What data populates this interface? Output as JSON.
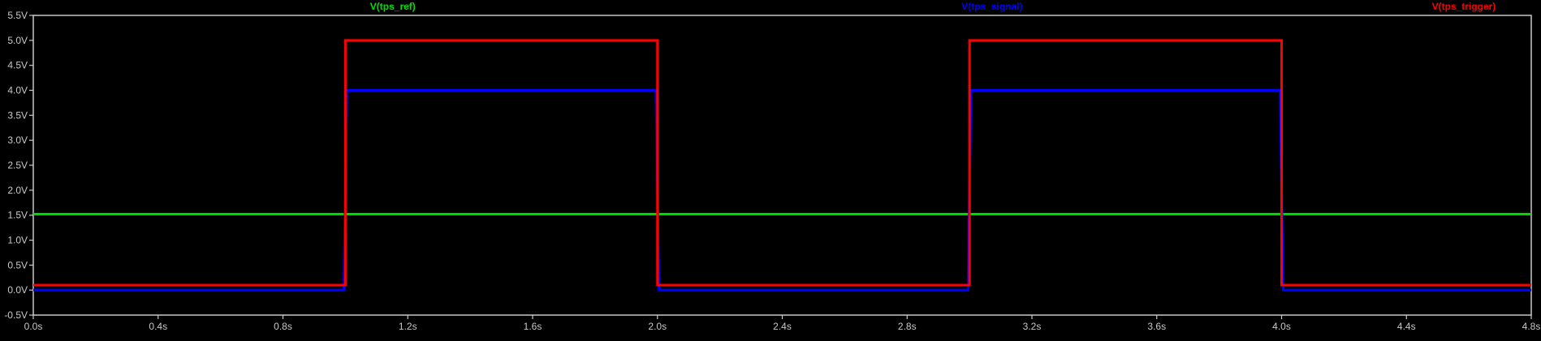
{
  "chart_data": {
    "type": "line",
    "title": "",
    "xlabel": "",
    "ylabel": "",
    "xlim": [
      0,
      4.8
    ],
    "ylim": [
      -0.5,
      5.5
    ],
    "grid": false,
    "background": "#000000",
    "axis_color": "#c8c8c8",
    "x_ticks": [
      0,
      0.4,
      0.8,
      1.2,
      1.6,
      2.0,
      2.4,
      2.8,
      3.2,
      3.6,
      4.0,
      4.4,
      4.8
    ],
    "x_tick_labels": [
      "0.0s",
      "0.4s",
      "0.8s",
      "1.2s",
      "1.6s",
      "2.0s",
      "2.4s",
      "2.8s",
      "3.2s",
      "3.6s",
      "4.0s",
      "4.4s",
      "4.8s"
    ],
    "y_ticks": [
      -0.5,
      0.0,
      0.5,
      1.0,
      1.5,
      2.0,
      2.5,
      3.0,
      3.5,
      4.0,
      4.5,
      5.0,
      5.5
    ],
    "y_tick_labels": [
      "-0.5V",
      "0.0V",
      "0.5V",
      "1.0V",
      "1.5V",
      "2.0V",
      "2.5V",
      "3.0V",
      "3.5V",
      "4.0V",
      "4.5V",
      "5.0V",
      "5.5V"
    ],
    "legend_placement": "top",
    "series": [
      {
        "name": "V(tps_ref)",
        "color": "#00e000",
        "x": [
          0,
          4.8
        ],
        "y": [
          1.52,
          1.52
        ]
      },
      {
        "name": "V(tps_signal)",
        "color": "#0000ff",
        "x": [
          0,
          0.995,
          1.005,
          1.995,
          2.005,
          2.995,
          3.005,
          3.995,
          4.005,
          4.8
        ],
        "y": [
          0.0,
          0.0,
          4.0,
          4.0,
          0.0,
          0.0,
          4.0,
          4.0,
          0.0,
          0.0
        ]
      },
      {
        "name": "V(tps_trigger)",
        "color": "#ff0000",
        "x": [
          0,
          1.0,
          1.0,
          2.0,
          2.0,
          3.0,
          3.0,
          4.0,
          4.0,
          4.8
        ],
        "y": [
          0.1,
          0.1,
          5.0,
          5.0,
          0.1,
          0.1,
          5.0,
          5.0,
          0.1,
          0.1
        ]
      }
    ]
  }
}
